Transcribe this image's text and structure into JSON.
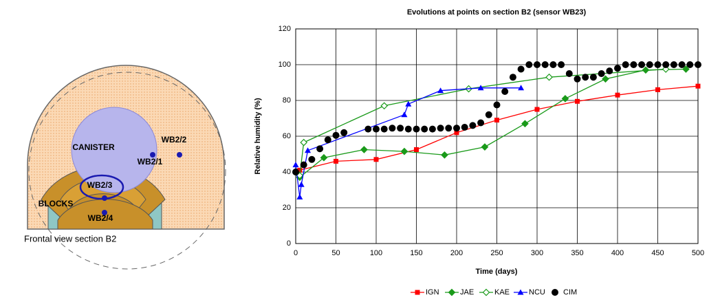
{
  "diagram": {
    "labels": [
      "CANISTER",
      "WB2/2",
      "WB2/1",
      "WB2/3",
      "BLOCKS",
      "WB2/4"
    ],
    "caption": "Frontal view section B2"
  },
  "chart_data": {
    "type": "line",
    "title": "Evolutions at points on section B2 (sensor WB23)",
    "x_label": "Time (days)",
    "y_label": "Relative humidity (%)",
    "xlim": [
      0,
      500
    ],
    "xticks": [
      0,
      50,
      100,
      150,
      200,
      250,
      300,
      350,
      400,
      450,
      500
    ],
    "ylim": [
      0,
      120
    ],
    "yticks": [
      0,
      20,
      40,
      60,
      80,
      100,
      120
    ],
    "grid": true,
    "series": [
      {
        "name": "IGN",
        "color": "#ff0000",
        "marker": "square",
        "line": true,
        "x": [
          5,
          50,
          100,
          150,
          200,
          250,
          300,
          350,
          400,
          450,
          500
        ],
        "values": [
          41,
          46,
          47,
          52.5,
          62,
          69,
          75,
          79.5,
          83,
          86,
          88
        ]
      },
      {
        "name": "JAE",
        "color": "#1a9a1a",
        "marker": "diamond",
        "line": true,
        "x": [
          5,
          35,
          85,
          135,
          185,
          235,
          285,
          335,
          385,
          435,
          485
        ],
        "values": [
          37,
          48,
          52.5,
          51.5,
          49.5,
          54,
          67,
          81,
          92,
          97,
          97.5
        ]
      },
      {
        "name": "KAE",
        "color": "#1a9a1a",
        "marker": "diamond-open",
        "line": true,
        "x": [
          5,
          10,
          110,
          215,
          315,
          460
        ],
        "values": [
          38,
          56.5,
          77,
          86.5,
          93,
          97.5
        ]
      },
      {
        "name": "NCU",
        "color": "#0000ff",
        "marker": "triangle",
        "line": true,
        "x": [
          0,
          5,
          7,
          15,
          135,
          140,
          180,
          230,
          280
        ],
        "values": [
          44,
          26,
          33,
          52,
          72,
          78,
          85.5,
          87,
          87
        ]
      },
      {
        "name": "CIM",
        "color": "#000000",
        "marker": "circle",
        "line": false,
        "x": [
          0,
          10,
          20,
          30,
          40,
          50,
          60,
          90,
          100,
          110,
          120,
          130,
          140,
          150,
          160,
          170,
          180,
          190,
          200,
          210,
          220,
          230,
          240,
          250,
          260,
          270,
          280,
          290,
          300,
          310,
          320,
          330,
          340,
          350,
          360,
          370,
          380,
          390,
          400,
          410,
          420,
          430,
          440,
          450,
          460,
          470,
          480,
          490,
          500
        ],
        "values": [
          40,
          44,
          47,
          53,
          58,
          60.5,
          62,
          64,
          64,
          64,
          64.5,
          64.5,
          64,
          64,
          64,
          64,
          64.5,
          64.5,
          64.5,
          65,
          66,
          67.5,
          72,
          77.5,
          85,
          93,
          97.5,
          100,
          100,
          100,
          100,
          100,
          95,
          92,
          93,
          93,
          95,
          96.5,
          98,
          100,
          100,
          100,
          100,
          100,
          100,
          100,
          100,
          100,
          100
        ]
      }
    ]
  }
}
